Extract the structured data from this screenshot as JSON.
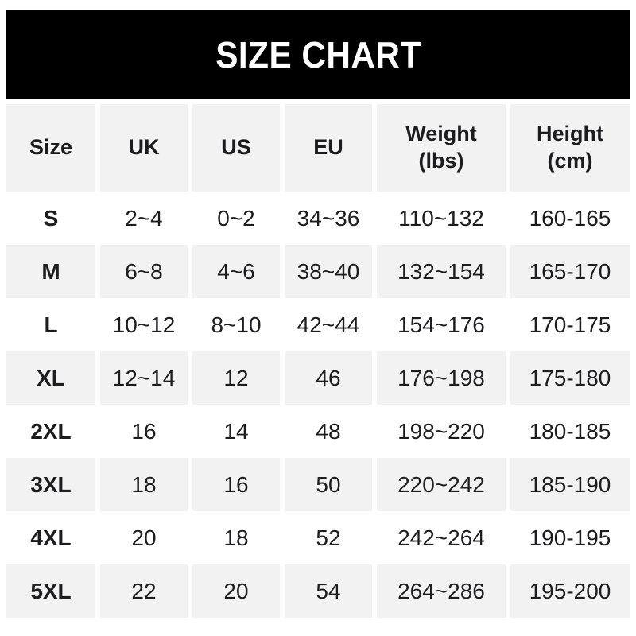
{
  "title": "SIZE CHART",
  "colors": {
    "banner_bg": "#000000",
    "banner_text": "#ffffff",
    "row_alt_bg": "#f2f2f2",
    "row_bg": "#ffffff",
    "text": "#1d1d1f"
  },
  "table": {
    "columns": [
      {
        "label": "Size",
        "sub": ""
      },
      {
        "label": "UK",
        "sub": ""
      },
      {
        "label": "US",
        "sub": ""
      },
      {
        "label": "EU",
        "sub": ""
      },
      {
        "label": "Weight",
        "sub": "(lbs)"
      },
      {
        "label": "Height",
        "sub": "(cm)"
      }
    ],
    "rows": [
      {
        "size": "S",
        "uk": "2~4",
        "us": "0~2",
        "eu": "34~36",
        "weight": "110~132",
        "height": "160-165"
      },
      {
        "size": "M",
        "uk": "6~8",
        "us": "4~6",
        "eu": "38~40",
        "weight": "132~154",
        "height": "165-170"
      },
      {
        "size": "L",
        "uk": "10~12",
        "us": "8~10",
        "eu": "42~44",
        "weight": "154~176",
        "height": "170-175"
      },
      {
        "size": "XL",
        "uk": "12~14",
        "us": "12",
        "eu": "46",
        "weight": "176~198",
        "height": "175-180"
      },
      {
        "size": "2XL",
        "uk": "16",
        "us": "14",
        "eu": "48",
        "weight": "198~220",
        "height": "180-185"
      },
      {
        "size": "3XL",
        "uk": "18",
        "us": "16",
        "eu": "50",
        "weight": "220~242",
        "height": "185-190"
      },
      {
        "size": "4XL",
        "uk": "20",
        "us": "18",
        "eu": "52",
        "weight": "242~264",
        "height": "190-195"
      },
      {
        "size": "5XL",
        "uk": "22",
        "us": "20",
        "eu": "54",
        "weight": "264~286",
        "height": "195-200"
      }
    ]
  },
  "chart_data": {
    "type": "table",
    "title": "SIZE CHART",
    "columns": [
      "Size",
      "UK",
      "US",
      "EU",
      "Weight (lbs)",
      "Height (cm)"
    ],
    "rows": [
      [
        "S",
        "2~4",
        "0~2",
        "34~36",
        "110~132",
        "160-165"
      ],
      [
        "M",
        "6~8",
        "4~6",
        "38~40",
        "132~154",
        "165-170"
      ],
      [
        "L",
        "10~12",
        "8~10",
        "42~44",
        "154~176",
        "170-175"
      ],
      [
        "XL",
        "12~14",
        "12",
        "46",
        "176~198",
        "175-180"
      ],
      [
        "2XL",
        "16",
        "14",
        "48",
        "198~220",
        "180-185"
      ],
      [
        "3XL",
        "18",
        "16",
        "50",
        "220~242",
        "185-190"
      ],
      [
        "4XL",
        "20",
        "18",
        "52",
        "242~264",
        "190-195"
      ],
      [
        "5XL",
        "22",
        "20",
        "54",
        "264~286",
        "195-200"
      ]
    ]
  }
}
